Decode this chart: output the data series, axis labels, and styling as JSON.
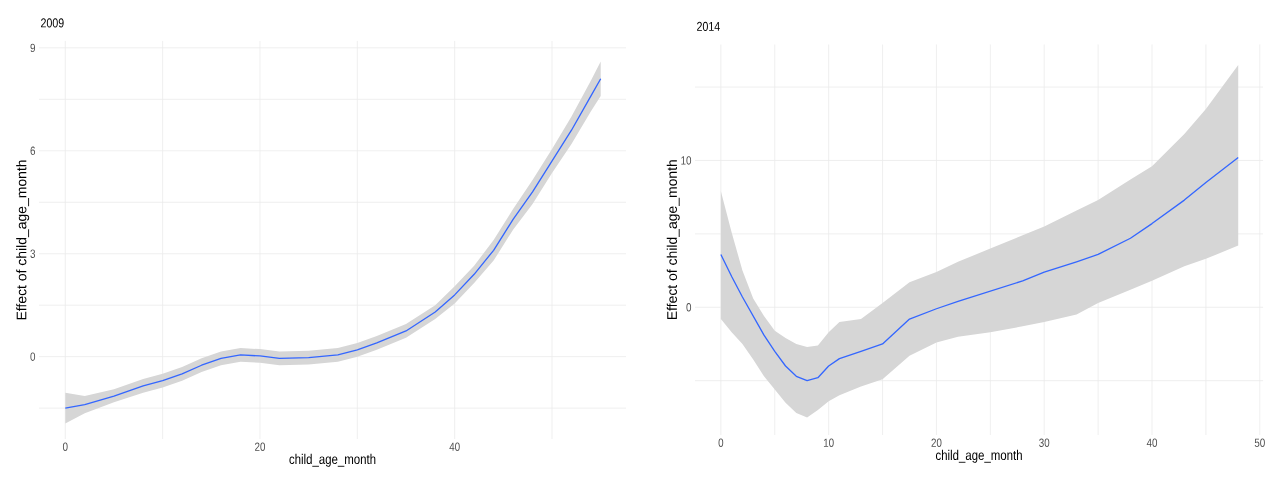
{
  "chart_data": [
    {
      "type": "line",
      "title": "2009",
      "xlabel": "child_age_month",
      "ylabel": "Effect of child_age_month",
      "grid": true,
      "xlim": [
        -2.7,
        57.6
      ],
      "ylim": [
        -2.4,
        9.2
      ],
      "xticks": [
        0,
        {
          "value": 10,
          "label": null
        },
        20,
        {
          "value": 30,
          "label": null
        },
        40,
        {
          "value": 50,
          "label": null
        }
      ],
      "yticks": [
        {
          "value": -1.5,
          "label": null
        },
        0,
        {
          "value": 1.5,
          "label": null
        },
        3,
        {
          "value": 4.5,
          "label": null
        },
        6,
        {
          "value": 7.5,
          "label": null
        },
        9
      ],
      "x": [
        0,
        2,
        5,
        8,
        10,
        12,
        14,
        16,
        18,
        20,
        22,
        25,
        28,
        30,
        32,
        35,
        38,
        40,
        42,
        44,
        46,
        48,
        50,
        52,
        54,
        55
      ],
      "series": [
        {
          "color": "#3366ff",
          "values": [
            -1.5,
            -1.4,
            -1.15,
            -0.85,
            -0.7,
            -0.5,
            -0.25,
            -0.05,
            0.05,
            0.02,
            -0.05,
            -0.03,
            0.05,
            0.2,
            0.4,
            0.75,
            1.3,
            1.8,
            2.4,
            3.1,
            4.0,
            4.8,
            5.7,
            6.6,
            7.6,
            8.1
          ],
          "lower": [
            -1.95,
            -1.65,
            -1.33,
            -1.05,
            -0.9,
            -0.7,
            -0.45,
            -0.25,
            -0.15,
            -0.18,
            -0.25,
            -0.23,
            -0.15,
            0.0,
            0.2,
            0.55,
            1.1,
            1.55,
            2.15,
            2.8,
            3.7,
            4.45,
            5.35,
            6.2,
            7.15,
            7.6
          ],
          "upper": [
            -1.05,
            -1.15,
            -0.95,
            -0.65,
            -0.5,
            -0.3,
            -0.05,
            0.15,
            0.25,
            0.22,
            0.15,
            0.17,
            0.25,
            0.4,
            0.6,
            0.95,
            1.5,
            2.05,
            2.65,
            3.4,
            4.3,
            5.15,
            6.05,
            7.0,
            8.05,
            8.6
          ]
        }
      ]
    },
    {
      "type": "line",
      "title": "2014",
      "xlabel": "child_age_month",
      "ylabel": "Effect of child_age_month",
      "grid": true,
      "xlim": [
        -2.4,
        50.3
      ],
      "ylim": [
        -8.7,
        17.9
      ],
      "xticks": [
        0,
        {
          "value": 5,
          "label": null
        },
        10,
        {
          "value": 15,
          "label": null
        },
        20,
        {
          "value": 25,
          "label": null
        },
        30,
        {
          "value": 35,
          "label": null
        },
        40,
        {
          "value": 45,
          "label": null
        },
        50
      ],
      "yticks": [
        {
          "value": -5,
          "label": null
        },
        0,
        {
          "value": 5,
          "label": null
        },
        10,
        {
          "value": 15,
          "label": null
        }
      ],
      "x": [
        0,
        1,
        2,
        3,
        4,
        5,
        6,
        7,
        8,
        9,
        10,
        11,
        13,
        15,
        17.5,
        20,
        22,
        25,
        28,
        30,
        33,
        35,
        38,
        40,
        43,
        45,
        48
      ],
      "series": [
        {
          "color": "#3366ff",
          "values": [
            3.6,
            2.1,
            0.7,
            -0.6,
            -1.9,
            -3.0,
            -4.0,
            -4.7,
            -5.0,
            -4.8,
            -4.0,
            -3.5,
            -3.0,
            -2.5,
            -0.8,
            -0.1,
            0.4,
            1.1,
            1.8,
            2.4,
            3.1,
            3.6,
            4.7,
            5.7,
            7.3,
            8.5,
            10.2
          ],
          "lower": [
            -0.8,
            -1.7,
            -2.5,
            -3.55,
            -4.7,
            -5.6,
            -6.5,
            -7.2,
            -7.5,
            -7.0,
            -6.4,
            -6.0,
            -5.4,
            -4.9,
            -3.3,
            -2.4,
            -2.0,
            -1.7,
            -1.3,
            -1.0,
            -0.5,
            0.3,
            1.2,
            1.8,
            2.8,
            3.3,
            4.2
          ],
          "upper": [
            7.9,
            5.1,
            2.5,
            0.6,
            -0.6,
            -1.6,
            -2.1,
            -2.5,
            -2.7,
            -2.6,
            -1.7,
            -1.0,
            -0.8,
            0.3,
            1.7,
            2.4,
            3.1,
            4.0,
            4.9,
            5.5,
            6.6,
            7.3,
            8.7,
            9.6,
            11.8,
            13.5,
            16.5
          ]
        }
      ]
    }
  ]
}
